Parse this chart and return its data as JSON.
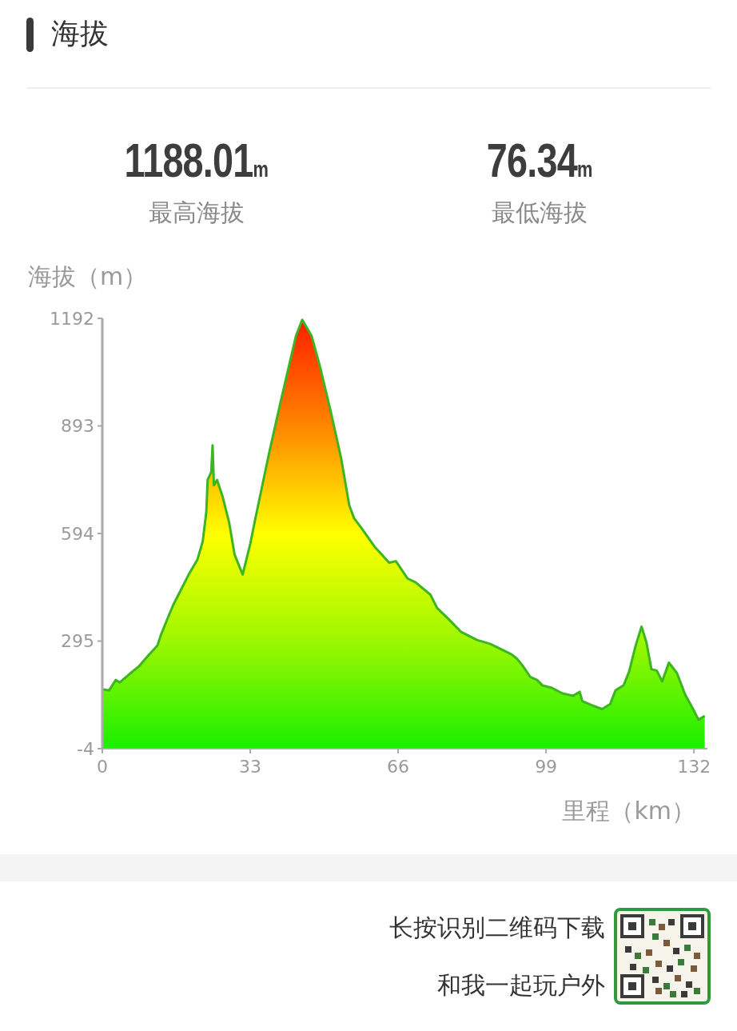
{
  "chart_data": {
    "type": "area",
    "title": "海拔",
    "ylabel": "海拔（m）",
    "xlabel": "里程（km）",
    "annotations": [
      "1188.01m",
      "最高海拔",
      "76.34m",
      "最低海拔",
      "长按识别二维码下载",
      "和我一起玩户外"
    ],
    "x": [
      0,
      1.5,
      3.0,
      3.9,
      6.3,
      8.1,
      9.9,
      12.3,
      13.1,
      14.3,
      15.8,
      17.6,
      19.4,
      21.2,
      22.4,
      23.2,
      23.5,
      24.3,
      24.6,
      24.9,
      25.6,
      26.8,
      28.3,
      29.5,
      31.3,
      33.0,
      34.2,
      37.2,
      39.6,
      41.4,
      43.2,
      44.6,
      46.7,
      48.5,
      50.9,
      53.3,
      55.1,
      56.2,
      58.0,
      60.7,
      64.0,
      65.5,
      68.1,
      69.9,
      73.2,
      74.7,
      77.1,
      80.0,
      83.6,
      86.6,
      89.5,
      91.3,
      92.5,
      93.7,
      95.5,
      97.0,
      98.2,
      100.3,
      102.6,
      105.0,
      106.5,
      107.1,
      109.2,
      111.5,
      113.3,
      114.5,
      116.3,
      117.5,
      119.0,
      120.3,
      121.4,
      122.5,
      123.7,
      124.9,
      126.4,
      128.2,
      130.0,
      131.8,
      133.0,
      134.4
    ],
    "series": [
      {
        "color": "#3cb521",
        "values": [
          161,
          158,
          187,
          180,
          206,
          224,
          250,
          283,
          313,
          350,
          395,
          439,
          483,
          521,
          572,
          654,
          743,
          765,
          839,
          728,
          743,
          698,
          624,
          536,
          480,
          565,
          639,
          817,
          950,
          1047,
          1143,
          1188.01,
          1143,
          1061,
          936,
          802,
          672,
          636,
          606,
          558,
          513,
          517,
          469,
          458,
          424,
          387,
          358,
          321,
          298,
          287,
          269,
          258,
          246,
          228,
          195,
          187,
          172,
          165,
          150,
          143,
          154,
          128,
          117,
          106,
          120,
          158,
          172,
          209,
          283,
          335,
          291,
          217,
          213,
          183,
          235,
          206,
          147,
          106,
          76.34,
          87
        ]
      }
    ],
    "xlim": [
      0,
      135
    ],
    "ylim": [
      -4,
      1192
    ],
    "xticks": [
      0,
      33,
      66,
      99,
      132
    ],
    "yticks": [
      -4,
      295,
      594,
      893,
      1192
    ]
  }
}
